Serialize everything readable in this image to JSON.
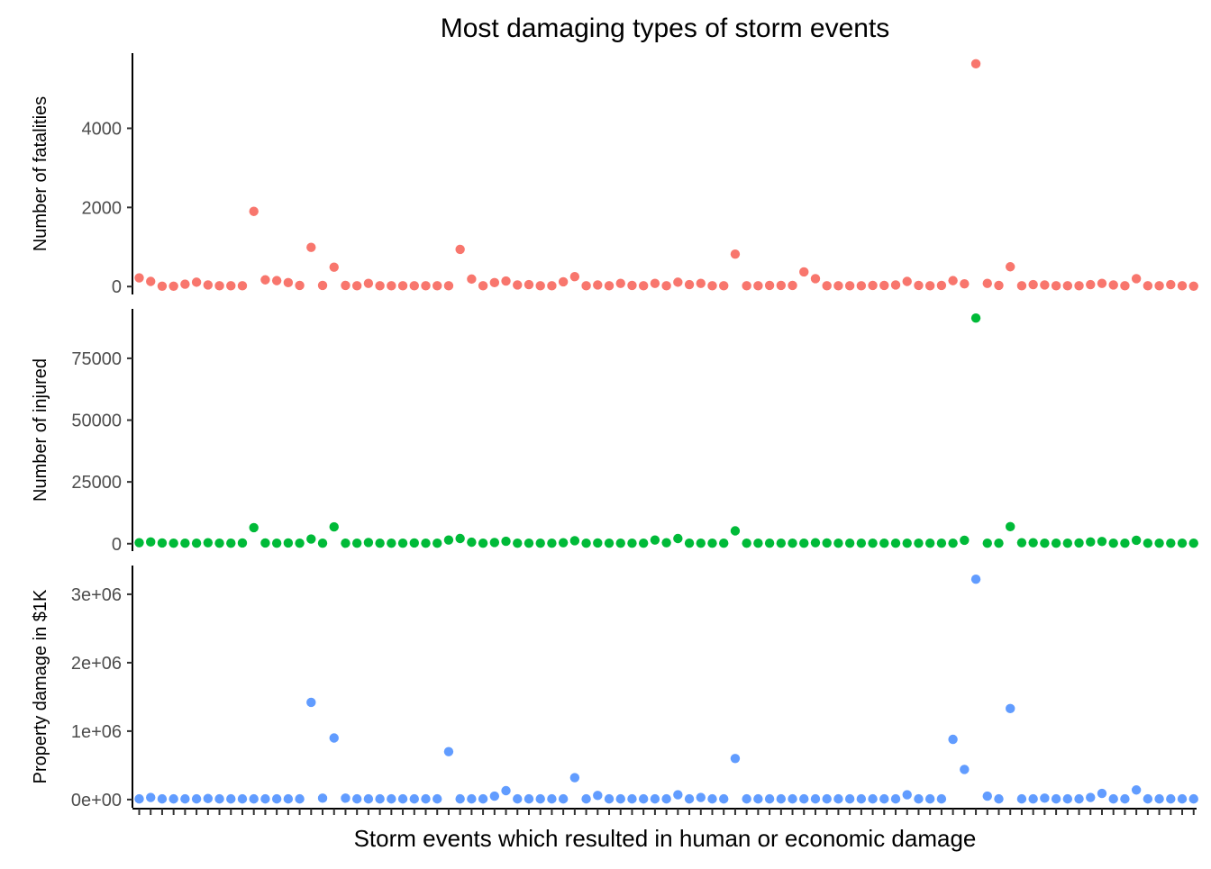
{
  "chart_data": {
    "type": "scatter",
    "title": "Most damaging types of storm events",
    "xlabel": "Storm events which resulted in human or economic damage",
    "x_tick_count": 93,
    "x_tick_labels": "none",
    "grid": false,
    "legend": "none",
    "panels": [
      {
        "name": "fatalities",
        "ylabel": "Number of fatalities",
        "color": "#F8766D",
        "ylim": [
          -200,
          5900
        ],
        "yticks": [
          0,
          2000,
          4000
        ],
        "ytick_labels": [
          "0",
          "2000",
          "4000"
        ],
        "values": [
          220,
          130,
          10,
          10,
          60,
          110,
          40,
          20,
          20,
          20,
          1900,
          170,
          150,
          100,
          30,
          990,
          30,
          490,
          30,
          20,
          80,
          20,
          20,
          20,
          20,
          20,
          20,
          20,
          940,
          190,
          20,
          100,
          140,
          40,
          50,
          20,
          20,
          120,
          250,
          20,
          40,
          20,
          80,
          30,
          20,
          80,
          20,
          110,
          50,
          80,
          20,
          20,
          820,
          20,
          20,
          30,
          30,
          30,
          370,
          200,
          20,
          20,
          20,
          20,
          30,
          30,
          40,
          130,
          30,
          20,
          30,
          150,
          70,
          5630,
          80,
          30,
          500,
          20,
          50,
          40,
          20,
          20,
          20,
          50,
          80,
          40,
          20,
          200,
          20,
          20,
          50,
          20,
          10
        ]
      },
      {
        "name": "injured",
        "ylabel": "Number of injured",
        "color": "#00BA38",
        "ylim": [
          -3000,
          95000
        ],
        "yticks": [
          0,
          25000,
          50000,
          75000
        ],
        "ytick_labels": [
          "0",
          "25000",
          "50000",
          "75000"
        ],
        "values": [
          400,
          700,
          300,
          200,
          200,
          200,
          400,
          200,
          200,
          300,
          6500,
          300,
          200,
          300,
          200,
          1900,
          200,
          6800,
          200,
          200,
          500,
          200,
          200,
          200,
          300,
          200,
          200,
          1500,
          2100,
          600,
          200,
          500,
          1000,
          200,
          200,
          200,
          200,
          400,
          1200,
          200,
          300,
          200,
          200,
          200,
          200,
          1500,
          400,
          2100,
          200,
          200,
          200,
          200,
          5200,
          200,
          200,
          200,
          200,
          200,
          200,
          400,
          300,
          200,
          200,
          200,
          200,
          200,
          200,
          200,
          200,
          200,
          200,
          200,
          1400,
          91300,
          200,
          200,
          6900,
          400,
          400,
          200,
          200,
          200,
          300,
          700,
          900,
          200,
          200,
          1400,
          200,
          200,
          200,
          200,
          200
        ]
      },
      {
        "name": "property_damage",
        "ylabel": "Property damage in $1K",
        "color": "#619CFF",
        "ylim": [
          -120000,
          3420000
        ],
        "yticks": [
          0,
          1000000,
          2000000,
          3000000
        ],
        "ytick_labels": [
          "0e+00",
          "1e+06",
          "2e+06",
          "3e+06"
        ],
        "values": [
          10000,
          30000,
          10000,
          10000,
          10000,
          10000,
          15000,
          10000,
          10000,
          10000,
          10000,
          10000,
          10000,
          10000,
          10000,
          1420000,
          20000,
          900000,
          20000,
          10000,
          10000,
          10000,
          10000,
          10000,
          10000,
          10000,
          10000,
          700000,
          10000,
          10000,
          10000,
          50000,
          130000,
          10000,
          10000,
          10000,
          10000,
          10000,
          320000,
          10000,
          60000,
          10000,
          10000,
          10000,
          10000,
          10000,
          10000,
          70000,
          10000,
          30000,
          10000,
          10000,
          600000,
          10000,
          10000,
          10000,
          10000,
          10000,
          10000,
          10000,
          10000,
          10000,
          10000,
          10000,
          10000,
          10000,
          10000,
          70000,
          10000,
          10000,
          10000,
          880000,
          440000,
          3220000,
          50000,
          10000,
          1330000,
          10000,
          10000,
          20000,
          10000,
          10000,
          10000,
          30000,
          90000,
          10000,
          10000,
          140000,
          10000,
          10000,
          10000,
          10000,
          10000
        ]
      }
    ]
  }
}
